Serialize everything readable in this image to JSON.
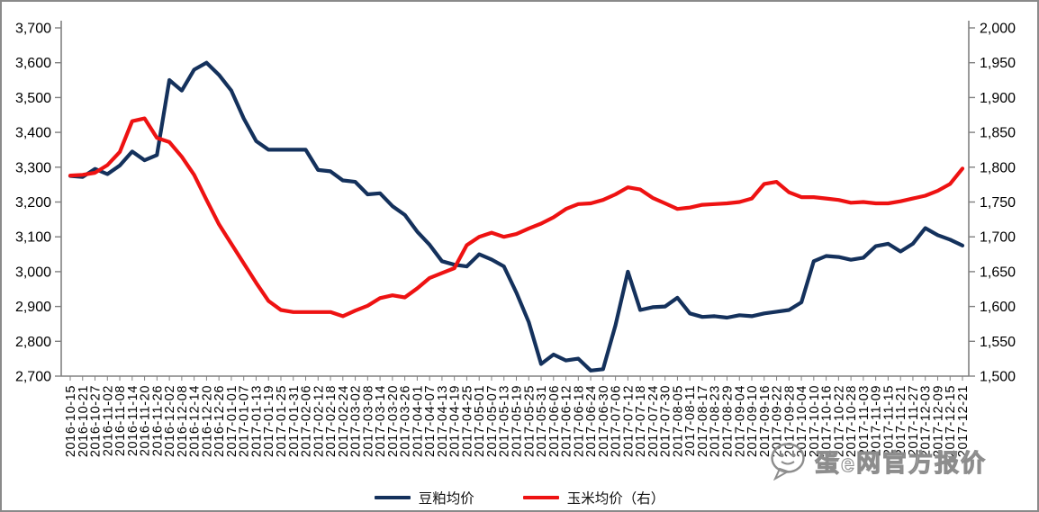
{
  "chart_data": {
    "type": "line",
    "grid": false,
    "legend_position": "bottom",
    "x_labels": [
      "2016-10-15",
      "2016-10-21",
      "2016-10-27",
      "2016-11-02",
      "2016-11-08",
      "2016-11-14",
      "2016-11-20",
      "2016-11-26",
      "2016-12-02",
      "2016-12-08",
      "2016-12-14",
      "2016-12-20",
      "2016-12-26",
      "2017-01-01",
      "2017-01-07",
      "2017-01-13",
      "2017-01-19",
      "2017-01-25",
      "2017-01-31",
      "2017-02-06",
      "2017-02-12",
      "2017-02-18",
      "2017-02-24",
      "2017-03-02",
      "2017-03-08",
      "2017-03-14",
      "2017-03-20",
      "2017-03-26",
      "2017-04-01",
      "2017-04-07",
      "2017-04-13",
      "2017-04-19",
      "2017-04-25",
      "2017-05-01",
      "2017-05-07",
      "2017-05-13",
      "2017-05-19",
      "2017-05-25",
      "2017-05-31",
      "2017-06-06",
      "2017-06-12",
      "2017-06-18",
      "2017-06-24",
      "2017-06-30",
      "2017-07-06",
      "2017-07-12",
      "2017-07-18",
      "2017-07-24",
      "2017-07-30",
      "2017-08-05",
      "2017-08-11",
      "2017-08-17",
      "2017-08-23",
      "2017-08-29",
      "2017-09-04",
      "2017-09-10",
      "2017-09-16",
      "2017-09-22",
      "2017-09-28",
      "2017-10-04",
      "2017-10-10",
      "2017-10-16",
      "2017-10-22",
      "2017-10-28",
      "2017-11-03",
      "2017-11-09",
      "2017-11-15",
      "2017-11-21",
      "2017-11-27",
      "2017-12-03",
      "2017-12-09",
      "2017-12-15",
      "2017-12-21"
    ],
    "series": [
      {
        "name": "豆粕均价",
        "data_name": "soybean-meal-line",
        "axis": "left",
        "color": "#14315C",
        "values": [
          3275,
          3272,
          3295,
          3280,
          3305,
          3345,
          3320,
          3335,
          3550,
          3520,
          3580,
          3600,
          3565,
          3520,
          3440,
          3375,
          3350,
          3350,
          3350,
          3350,
          3292,
          3288,
          3262,
          3258,
          3222,
          3225,
          3188,
          3163,
          3115,
          3077,
          3030,
          3020,
          3015,
          3050,
          3035,
          3015,
          2940,
          2855,
          2735,
          2762,
          2745,
          2750,
          2716,
          2720,
          2846,
          3000,
          2890,
          2898,
          2900,
          2925,
          2880,
          2870,
          2872,
          2868,
          2875,
          2872,
          2880,
          2885,
          2890,
          2912,
          3030,
          3045,
          3042,
          3034,
          3040,
          3073,
          3080,
          3058,
          3080,
          3125,
          3105,
          3092,
          3075
        ]
      },
      {
        "name": "玉米均价（右）",
        "data_name": "corn-line",
        "axis": "right",
        "color": "#EE1212",
        "values": [
          1788,
          1789,
          1792,
          1803,
          1822,
          1866,
          1870,
          1842,
          1836,
          1815,
          1789,
          1753,
          1718,
          1690,
          1662,
          1634,
          1608,
          1595,
          1592,
          1592,
          1592,
          1592,
          1586,
          1594,
          1601,
          1612,
          1616,
          1613,
          1626,
          1641,
          1648,
          1655,
          1688,
          1700,
          1706,
          1700,
          1704,
          1712,
          1719,
          1728,
          1740,
          1747,
          1748,
          1753,
          1761,
          1771,
          1768,
          1756,
          1748,
          1740,
          1742,
          1746,
          1747,
          1748,
          1750,
          1755,
          1776,
          1779,
          1764,
          1757,
          1757,
          1755,
          1753,
          1749,
          1750,
          1748,
          1748,
          1751,
          1755,
          1759,
          1766,
          1776,
          1798
        ]
      }
    ],
    "left_axis": {
      "min": 2700,
      "max": 3700,
      "step": 100,
      "tick_labels": [
        "3,700",
        "3,600",
        "3,500",
        "3,400",
        "3,300",
        "3,200",
        "3,100",
        "3,000",
        "2,900",
        "2,800",
        "2,700"
      ]
    },
    "right_axis": {
      "min": 1500,
      "max": 2000,
      "step": 50,
      "tick_labels": [
        "2,000",
        "1,950",
        "1,900",
        "1,850",
        "1,800",
        "1,750",
        "1,700",
        "1,650",
        "1,600",
        "1,550",
        "1,500"
      ]
    },
    "axis_color": "#808080",
    "label_color": "#000000"
  },
  "watermark": {
    "text": "蛋e网官方报价",
    "icon": "wechat-chat-bubble",
    "color": "#8d8d8d"
  }
}
